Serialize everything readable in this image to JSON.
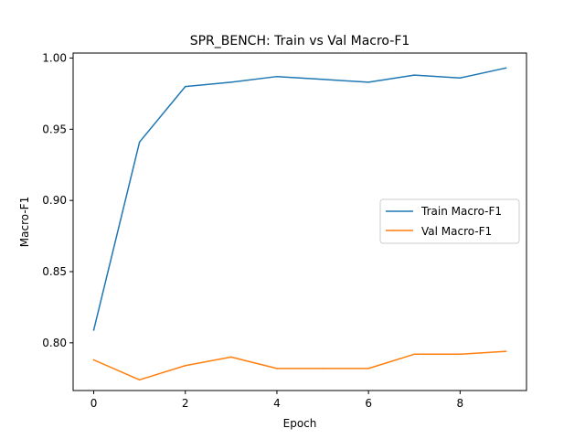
{
  "chart_data": {
    "type": "line",
    "title": "SPR_BENCH: Train vs Val Macro-F1",
    "xlabel": "Epoch",
    "ylabel": "Macro-F1",
    "x": [
      0,
      1,
      2,
      3,
      4,
      5,
      6,
      7,
      8,
      9
    ],
    "xlim": [
      -0.45,
      9.45
    ],
    "ylim": [
      0.7665,
      1.0035
    ],
    "xticks": [
      0,
      2,
      4,
      6,
      8
    ],
    "xtick_labels": [
      "0",
      "2",
      "4",
      "6",
      "8"
    ],
    "yticks": [
      0.8,
      0.85,
      0.9,
      0.95,
      1.0
    ],
    "ytick_labels": [
      "0.80",
      "0.85",
      "0.90",
      "0.95",
      "1.00"
    ],
    "grid": false,
    "legend_position": "center-right",
    "series": [
      {
        "name": "Train Macro-F1",
        "color": "#1f77b4",
        "values": [
          0.809,
          0.941,
          0.98,
          0.983,
          0.987,
          0.985,
          0.983,
          0.988,
          0.986,
          0.993
        ]
      },
      {
        "name": "Val Macro-F1",
        "color": "#ff7f0e",
        "values": [
          0.788,
          0.774,
          0.784,
          0.79,
          0.782,
          0.782,
          0.782,
          0.792,
          0.792,
          0.794
        ]
      }
    ]
  }
}
